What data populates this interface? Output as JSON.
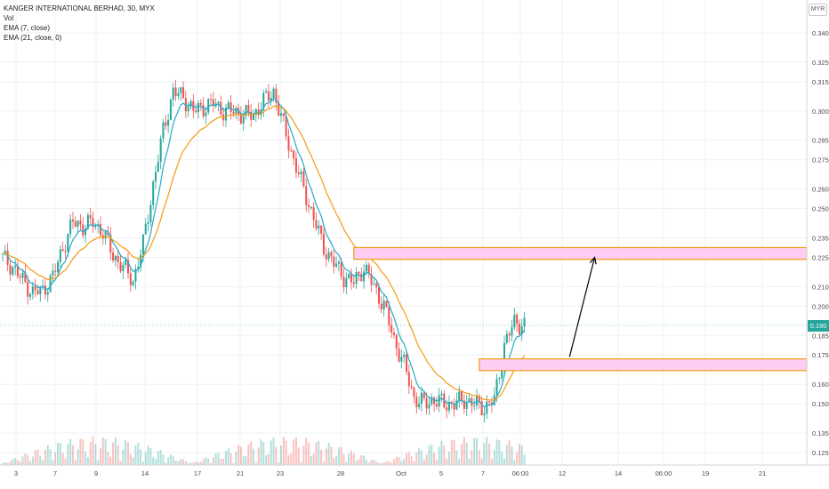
{
  "legend": {
    "symbol": "KANGER INTERNATIONAL BERHAD, 30, MYX",
    "vol": "Vol",
    "ema1": "EMA (7, close)",
    "ema2": "EMA (21, close, 0)"
  },
  "currency": "MYR",
  "last_price": "0.190",
  "colors": {
    "up": "#26a69a",
    "down": "#ef5350",
    "ema_fast": "#26a9c9",
    "ema_slow": "#f39c12",
    "zone_fill": "#ffcdf3",
    "zone_border": "#f39c12",
    "grid": "#eef1f5"
  },
  "chart_data": {
    "type": "candlestick",
    "y_axis": {
      "min": 0.115,
      "max": 0.345,
      "ticks": [
        "0.340",
        "0.325",
        "0.315",
        "0.300",
        "0.285",
        "0.275",
        "0.260",
        "0.250",
        "0.235",
        "0.225",
        "0.210",
        "0.200",
        "0.185",
        "0.175",
        "0.160",
        "0.150",
        "0.135",
        "0.125"
      ]
    },
    "x_axis": {
      "ticks": [
        "3",
        "7",
        "9",
        "14",
        "17",
        "21",
        "23",
        "28",
        "Oct",
        "5",
        "7",
        "06:00",
        "12",
        "14",
        "06:00",
        "19",
        "21"
      ]
    },
    "series_close": [
      {
        "i": 0,
        "c": 0.225
      },
      {
        "i": 4,
        "c": 0.22
      },
      {
        "i": 8,
        "c": 0.213
      },
      {
        "i": 12,
        "c": 0.207
      },
      {
        "i": 16,
        "c": 0.208
      },
      {
        "i": 20,
        "c": 0.215
      },
      {
        "i": 24,
        "c": 0.23
      },
      {
        "i": 28,
        "c": 0.243
      },
      {
        "i": 32,
        "c": 0.241
      },
      {
        "i": 36,
        "c": 0.243
      },
      {
        "i": 40,
        "c": 0.238
      },
      {
        "i": 44,
        "c": 0.226
      },
      {
        "i": 48,
        "c": 0.22
      },
      {
        "i": 52,
        "c": 0.213
      },
      {
        "i": 56,
        "c": 0.232
      },
      {
        "i": 60,
        "c": 0.262
      },
      {
        "i": 64,
        "c": 0.29
      },
      {
        "i": 68,
        "c": 0.31
      },
      {
        "i": 72,
        "c": 0.307
      },
      {
        "i": 76,
        "c": 0.3
      },
      {
        "i": 80,
        "c": 0.302
      },
      {
        "i": 84,
        "c": 0.304
      },
      {
        "i": 88,
        "c": 0.3
      },
      {
        "i": 92,
        "c": 0.3
      },
      {
        "i": 96,
        "c": 0.298
      },
      {
        "i": 100,
        "c": 0.298
      },
      {
        "i": 104,
        "c": 0.305
      },
      {
        "i": 108,
        "c": 0.31
      },
      {
        "i": 112,
        "c": 0.292
      },
      {
        "i": 116,
        "c": 0.275
      },
      {
        "i": 120,
        "c": 0.26
      },
      {
        "i": 124,
        "c": 0.245
      },
      {
        "i": 128,
        "c": 0.23
      },
      {
        "i": 132,
        "c": 0.222
      },
      {
        "i": 136,
        "c": 0.215
      },
      {
        "i": 140,
        "c": 0.212
      },
      {
        "i": 144,
        "c": 0.22
      },
      {
        "i": 148,
        "c": 0.21
      },
      {
        "i": 152,
        "c": 0.2
      },
      {
        "i": 156,
        "c": 0.183
      },
      {
        "i": 160,
        "c": 0.17
      },
      {
        "i": 164,
        "c": 0.153
      },
      {
        "i": 168,
        "c": 0.15
      },
      {
        "i": 172,
        "c": 0.152
      },
      {
        "i": 176,
        "c": 0.15
      },
      {
        "i": 180,
        "c": 0.15
      },
      {
        "i": 184,
        "c": 0.152
      },
      {
        "i": 188,
        "c": 0.15
      },
      {
        "i": 192,
        "c": 0.148
      },
      {
        "i": 196,
        "c": 0.152
      },
      {
        "i": 200,
        "c": 0.18
      },
      {
        "i": 204,
        "c": 0.192
      },
      {
        "i": 208,
        "c": 0.19
      }
    ],
    "zones": [
      {
        "top": 0.23,
        "bottom": 0.224,
        "from_i": 140
      },
      {
        "top": 0.173,
        "bottom": 0.167,
        "from_i": 190
      }
    ],
    "arrow": {
      "from": {
        "i": 226,
        "y": 0.174
      },
      "to": {
        "i": 236,
        "y": 0.225
      }
    }
  }
}
